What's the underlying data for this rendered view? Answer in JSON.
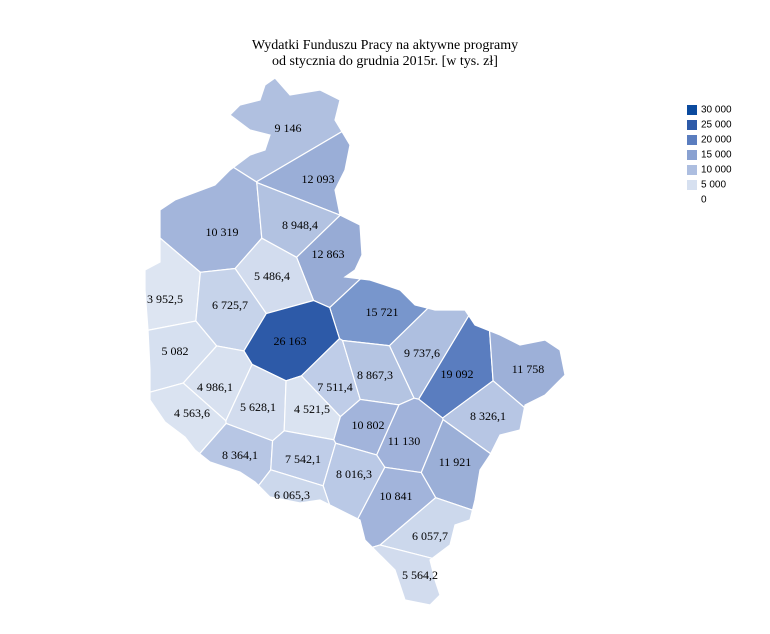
{
  "title": [
    "Wydatki Funduszu Pracy na aktywne programy",
    "od stycznia do grudnia 2015r. [w tys. zł]"
  ],
  "legend": [
    {
      "label": "30 000",
      "color": "#0b4a9e"
    },
    {
      "label": "25 000",
      "color": "#2d5aa8"
    },
    {
      "label": "20 000",
      "color": "#5a7dbf"
    },
    {
      "label": "15 000",
      "color": "#89a1d1"
    },
    {
      "label": "10 000",
      "color": "#adbee0"
    },
    {
      "label": "5 000",
      "color": "#d6e0f0"
    },
    {
      "label": "0",
      "color": "#ffffff"
    }
  ],
  "regions": [
    {
      "label": "9 146",
      "color": "#b0c0e0"
    },
    {
      "label": "12 093",
      "color": "#9aaed7"
    },
    {
      "label": "10 319",
      "color": "#a3b5db"
    },
    {
      "label": "8 948,4",
      "color": "#b2c2e1"
    },
    {
      "label": "12 863",
      "color": "#97abd5"
    },
    {
      "label": "5 486,4",
      "color": "#d2dcee"
    },
    {
      "label": "3 952,5",
      "color": "#dde5f2"
    },
    {
      "label": "6 725,7",
      "color": "#c6d3ea"
    },
    {
      "label": "15 721",
      "color": "#7896cc"
    },
    {
      "label": "26 163",
      "color": "#2d5aa8"
    },
    {
      "label": "5 082",
      "color": "#d6e0f0"
    },
    {
      "label": "9 737,6",
      "color": "#aebfe0"
    },
    {
      "label": "19 092",
      "color": "#5a7dbf"
    },
    {
      "label": "11 758",
      "color": "#9db0d8"
    },
    {
      "label": "4 986,1",
      "color": "#d8e1f0"
    },
    {
      "label": "7 511,4",
      "color": "#bfcde8"
    },
    {
      "label": "8 867,3",
      "color": "#b4c4e2"
    },
    {
      "label": "4 563,6",
      "color": "#dae3f1"
    },
    {
      "label": "5 628,1",
      "color": "#d2dcee"
    },
    {
      "label": "4 521,5",
      "color": "#dae3f1"
    },
    {
      "label": "10 802",
      "color": "#a2b4db"
    },
    {
      "label": "8 326,1",
      "color": "#b7c6e4"
    },
    {
      "label": "11 130",
      "color": "#a0b2da"
    },
    {
      "label": "8 364,1",
      "color": "#b7c6e4"
    },
    {
      "label": "7 542,1",
      "color": "#bfcde8"
    },
    {
      "label": "8 016,3",
      "color": "#bac9e6"
    },
    {
      "label": "11 921",
      "color": "#9bafd7"
    },
    {
      "label": "6 065,3",
      "color": "#ccd8ec"
    },
    {
      "label": "10 841",
      "color": "#a2b4db"
    },
    {
      "label": "6 057,7",
      "color": "#ccd8ec"
    },
    {
      "label": "5 564,2",
      "color": "#d2dcee"
    }
  ]
}
